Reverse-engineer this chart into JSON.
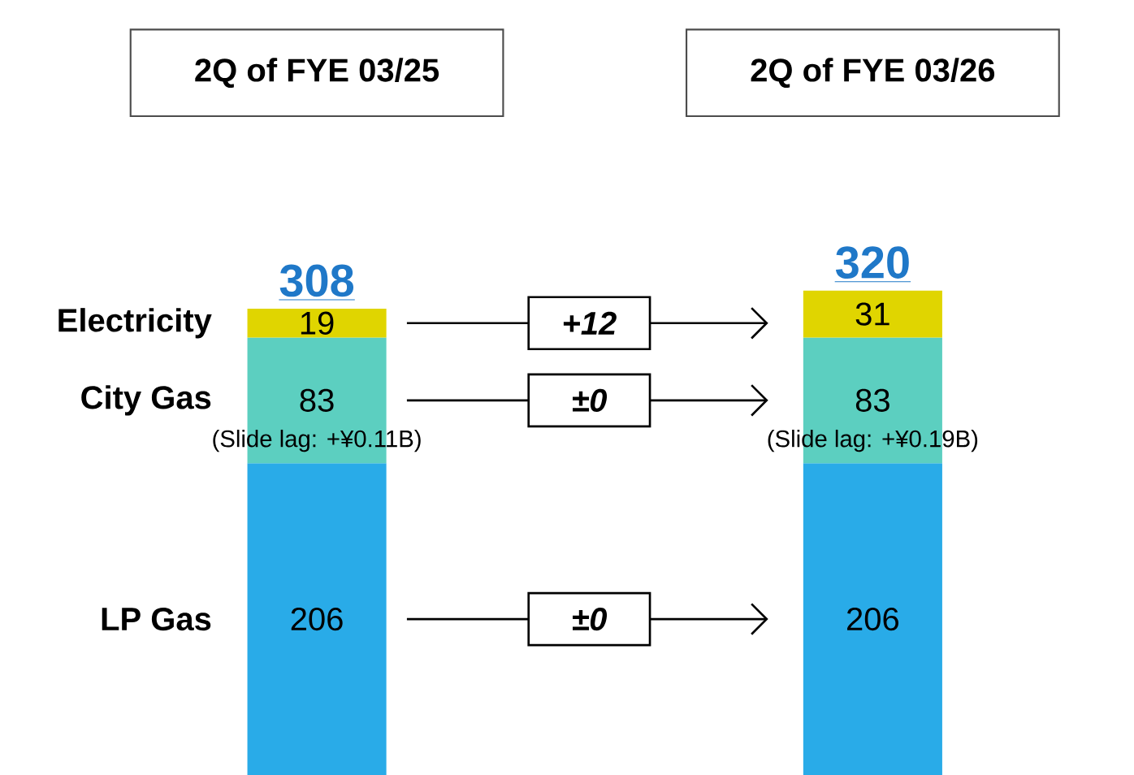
{
  "chart_data": {
    "type": "bar",
    "stacked": true,
    "categories": [
      "2Q of FYE 03/25",
      "2Q of FYE 03/26"
    ],
    "series": [
      {
        "name": "LP Gas",
        "color": "#29abe8",
        "values": [
          206,
          206
        ]
      },
      {
        "name": "City Gas",
        "color": "#5ccfc0",
        "values": [
          83,
          83
        ]
      },
      {
        "name": "Electricity",
        "color": "#e0d500",
        "values": [
          19,
          31
        ]
      }
    ],
    "data_labels": true,
    "totals": [
      "308",
      "320"
    ],
    "legend": false,
    "annotations": [
      "(Slide lag: +¥0.11B)",
      "(Slide lag: +¥0.19B)",
      "+12",
      "±0",
      "±0"
    ]
  }
}
